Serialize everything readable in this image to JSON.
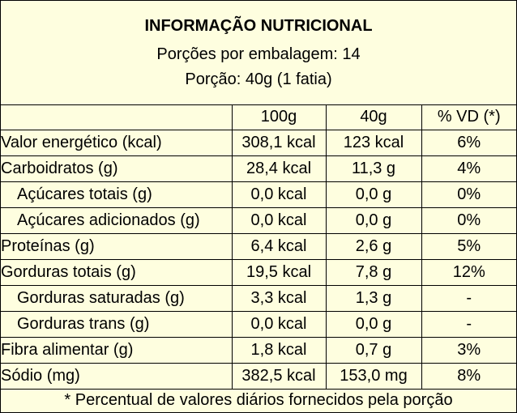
{
  "header": {
    "title": "INFORMAÇÃO NUTRICIONAL",
    "servings_per_package": "Porções por embalagem: 14",
    "serving_size": "Porção: 40g (1 fatia)"
  },
  "columns": [
    "",
    "100g",
    "40g",
    "% VD (*)"
  ],
  "rows": [
    {
      "name": "Valor energético (kcal)",
      "per100": "308,1 kcal",
      "per40": "123 kcal",
      "vd": "6%"
    },
    {
      "name": "Carboidratos (g)",
      "per100": "28,4 kcal",
      "per40": "11,3 g",
      "vd": "4%"
    },
    {
      "name": "Açúcares totais (g)",
      "per100": "0,0 kcal",
      "per40": "0,0 g",
      "vd": "0%"
    },
    {
      "name": "Açúcares adicionados (g)",
      "per100": "0,0 kcal",
      "per40": "0,0 g",
      "vd": "0%"
    },
    {
      "name": "Proteínas (g)",
      "per100": "6,4 kcal",
      "per40": "2,6 g",
      "vd": "5%"
    },
    {
      "name": "Gorduras totais (g)",
      "per100": "19,5 kcal",
      "per40": "7,8 g",
      "vd": "12%"
    },
    {
      "name": "Gorduras saturadas (g)",
      "per100": "3,3 kcal",
      "per40": "1,3 g",
      "vd": "-"
    },
    {
      "name": "Gorduras trans (g)",
      "per100": "0,0 kcal",
      "per40": "0,0 g",
      "vd": "-"
    },
    {
      "name": "Fibra alimentar (g)",
      "per100": "1,8 kcal",
      "per40": "0,7 g",
      "vd": "3%"
    },
    {
      "name": "Sódio (mg)",
      "per100": "382,5 kcal",
      "per40": "153,0 mg",
      "vd": "8%"
    }
  ],
  "footnote": "* Percentual de valores diários fornecidos pela porção",
  "colors": {
    "background": "#fefedf",
    "border": "#000000"
  }
}
